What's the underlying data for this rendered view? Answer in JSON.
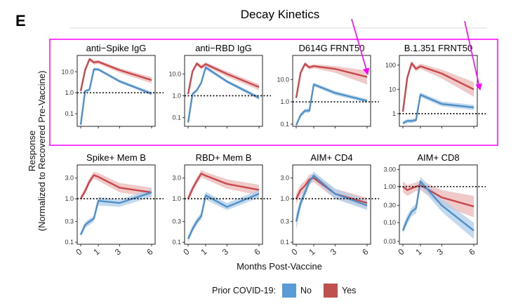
{
  "figure": {
    "panel_letter": "E",
    "title": "Decay Kinetics",
    "y_axis_label_line1": "Response",
    "y_axis_label_line2": "(Normalized to Recovered Pre-Vaccine)",
    "x_axis_label": "Months Post-Vaccine",
    "x_ticks": [
      "0",
      "1",
      "3",
      "6"
    ],
    "legend_title": "Prior COVID-19:",
    "legend_items": [
      {
        "label": "No",
        "color": "#5b9bd5"
      },
      {
        "label": "Yes",
        "color": "#c0504d"
      }
    ],
    "highlight_color": "#ff00ff",
    "colors": {
      "no": "#4f8fc7",
      "yes": "#c8474a",
      "no_band": "#b3d0ea",
      "yes_band": "#ecbcbc"
    }
  },
  "chart_data": [
    {
      "type": "line",
      "title": "anti−Spike IgG",
      "y_scale": "log",
      "ylim": [
        0.025,
        60
      ],
      "yticks": [
        0.1,
        1.0,
        10.0
      ],
      "ytick_labels": [
        "0.1",
        "1.0",
        "10.0"
      ],
      "reference_line": 1,
      "x": [
        0,
        0.25,
        0.5,
        0.75,
        1,
        3,
        6
      ],
      "series": [
        {
          "name": "No",
          "values": [
            0.03,
            1.2,
            1.4,
            13,
            13,
            3.5,
            0.9
          ],
          "lower": [
            0.025,
            1.0,
            1.2,
            11,
            11,
            3.0,
            0.75
          ],
          "upper": [
            0.04,
            1.4,
            1.6,
            16,
            15,
            4.2,
            1.1
          ]
        },
        {
          "name": "Yes",
          "values": [
            1.2,
            12,
            40,
            28,
            30,
            12,
            4
          ],
          "lower": [
            1.0,
            10,
            32,
            22,
            24,
            9,
            2.8
          ],
          "upper": [
            1.5,
            15,
            48,
            34,
            36,
            15,
            5.5
          ]
        }
      ]
    },
    {
      "type": "line",
      "title": "anti−RBD IgG",
      "y_scale": "log",
      "ylim": [
        0.04,
        70
      ],
      "yticks": [
        0.1,
        1.0,
        10.0
      ],
      "ytick_labels": [
        "0.1",
        "1.0",
        "10.0"
      ],
      "reference_line": 1,
      "x": [
        0,
        0.25,
        0.5,
        0.75,
        1,
        3,
        6
      ],
      "series": [
        {
          "name": "No",
          "values": [
            0.06,
            1.2,
            1.8,
            4,
            20,
            4.5,
            0.8
          ],
          "lower": [
            0.05,
            1.0,
            1.5,
            3.3,
            16,
            3.8,
            0.65
          ],
          "upper": [
            0.08,
            1.4,
            2.1,
            4.8,
            24,
            5.3,
            1.0
          ]
        },
        {
          "name": "Yes",
          "values": [
            1.2,
            13,
            30,
            20,
            28,
            10,
            2.5
          ],
          "lower": [
            1.0,
            11,
            24,
            16,
            22,
            7.5,
            1.8
          ],
          "upper": [
            1.5,
            16,
            37,
            25,
            34,
            13,
            3.4
          ]
        }
      ]
    },
    {
      "type": "line",
      "title": "D614G FRNT50",
      "y_scale": "log",
      "ylim": [
        0.08,
        120
      ],
      "yticks": [
        0.1,
        1.0,
        10.0
      ],
      "ytick_labels": [
        "0.1",
        "1.0",
        "10.0"
      ],
      "reference_line": 1,
      "x": [
        0,
        0.25,
        0.5,
        0.75,
        1,
        3,
        6
      ],
      "series": [
        {
          "name": "No",
          "values": [
            0.09,
            0.25,
            0.4,
            0.4,
            6,
            2.5,
            1.1
          ],
          "lower": [
            0.08,
            0.2,
            0.32,
            0.32,
            5,
            2.0,
            0.9
          ],
          "upper": [
            0.11,
            0.32,
            0.5,
            0.5,
            7.2,
            3.1,
            1.35
          ]
        },
        {
          "name": "Yes",
          "values": [
            1.5,
            20,
            50,
            35,
            40,
            30,
            13
          ],
          "lower": [
            1.2,
            16,
            40,
            28,
            32,
            20,
            6
          ],
          "upper": [
            1.9,
            25,
            62,
            43,
            48,
            40,
            25
          ]
        }
      ]
    },
    {
      "type": "line",
      "title": "B.1.351 FRNT50",
      "y_scale": "log",
      "ylim": [
        0.3,
        250
      ],
      "yticks": [
        1,
        10,
        100
      ],
      "ytick_labels": [
        "1",
        "10",
        "100"
      ],
      "reference_line": 1,
      "x": [
        0,
        0.25,
        0.5,
        0.75,
        1,
        3,
        6
      ],
      "series": [
        {
          "name": "No",
          "values": [
            0.4,
            0.5,
            0.5,
            0.55,
            6,
            2.5,
            1.8
          ],
          "lower": [
            0.35,
            0.42,
            0.42,
            0.45,
            4.8,
            2.0,
            1.4
          ],
          "upper": [
            0.48,
            0.6,
            0.6,
            0.65,
            7.5,
            3.2,
            2.3
          ]
        },
        {
          "name": "Yes",
          "values": [
            1.2,
            30,
            120,
            70,
            90,
            45,
            10
          ],
          "lower": [
            1.0,
            24,
            90,
            55,
            70,
            28,
            5
          ],
          "upper": [
            1.5,
            37,
            150,
            90,
            115,
            65,
            20
          ]
        }
      ]
    },
    {
      "type": "line",
      "title": "Spike+ Mem B",
      "y_scale": "log",
      "ylim": [
        0.09,
        6
      ],
      "yticks": [
        0.1,
        0.3,
        1.0,
        3.0
      ],
      "ytick_labels": [
        "0.1",
        "0.3",
        "1.0",
        "3.0"
      ],
      "reference_line": 1,
      "x": [
        0,
        0.25,
        0.5,
        0.75,
        1,
        3,
        6
      ],
      "series": [
        {
          "name": "No",
          "values": [
            0.15,
            0.25,
            0.3,
            0.35,
            0.9,
            0.8,
            1.4
          ],
          "lower": [
            0.13,
            0.21,
            0.25,
            0.3,
            0.7,
            0.65,
            1.1
          ],
          "upper": [
            0.17,
            0.29,
            0.35,
            0.4,
            1.1,
            0.95,
            1.7
          ]
        },
        {
          "name": "Yes",
          "values": [
            1.0,
            1.5,
            2.5,
            3.5,
            3.2,
            1.8,
            1.4
          ],
          "lower": [
            0.85,
            1.3,
            2.1,
            2.9,
            2.6,
            1.4,
            1.1
          ],
          "upper": [
            1.2,
            1.8,
            3.0,
            4.2,
            3.9,
            2.3,
            1.8
          ]
        }
      ]
    },
    {
      "type": "line",
      "title": "RBD+ Mem B",
      "y_scale": "log",
      "ylim": [
        0.09,
        6
      ],
      "yticks": [
        0.1,
        0.3,
        1.0,
        3.0
      ],
      "ytick_labels": [
        "0.1",
        "0.3",
        "1.0",
        "3.0"
      ],
      "reference_line": 1,
      "x": [
        0,
        0.25,
        0.5,
        0.75,
        1,
        3,
        6
      ],
      "series": [
        {
          "name": "No",
          "values": [
            0.12,
            0.2,
            0.3,
            0.4,
            1.2,
            0.65,
            1.3
          ],
          "lower": [
            0.1,
            0.17,
            0.25,
            0.33,
            0.95,
            0.55,
            1.05
          ],
          "upper": [
            0.14,
            0.24,
            0.36,
            0.48,
            1.45,
            0.8,
            1.6
          ]
        },
        {
          "name": "Yes",
          "values": [
            1.0,
            1.7,
            2.6,
            3.8,
            3.4,
            2.2,
            1.6
          ],
          "lower": [
            0.85,
            1.4,
            2.2,
            3.1,
            2.8,
            1.7,
            1.2
          ],
          "upper": [
            1.2,
            2.0,
            3.1,
            4.6,
            4.1,
            2.8,
            2.1
          ]
        }
      ]
    },
    {
      "type": "line",
      "title": "AIM+ CD4",
      "y_scale": "log",
      "ylim": [
        0.09,
        6
      ],
      "yticks": [
        0.1,
        0.3,
        1.0,
        3.0
      ],
      "ytick_labels": [
        "0.1",
        "0.3",
        "1.0",
        "3.0"
      ],
      "reference_line": 1,
      "x": [
        0,
        0.25,
        0.5,
        0.75,
        1,
        3,
        6
      ],
      "series": [
        {
          "name": "No",
          "values": [
            0.3,
            0.8,
            1.4,
            2.5,
            3.4,
            1.3,
            0.7
          ],
          "lower": [
            0.2,
            0.6,
            1.1,
            2.0,
            2.8,
            1.0,
            0.55
          ],
          "upper": [
            0.45,
            1.05,
            1.8,
            3.1,
            4.2,
            1.7,
            0.9
          ]
        },
        {
          "name": "Yes",
          "values": [
            1.0,
            1.6,
            2.0,
            2.8,
            3.0,
            1.3,
            0.8
          ],
          "lower": [
            0.75,
            1.2,
            1.5,
            2.2,
            2.4,
            1.0,
            0.6
          ],
          "upper": [
            1.3,
            2.1,
            2.6,
            3.6,
            3.8,
            1.7,
            1.05
          ]
        }
      ]
    },
    {
      "type": "line",
      "title": "AIM+ CD8",
      "y_scale": "log",
      "ylim": [
        0.025,
        4
      ],
      "yticks": [
        0.03,
        0.1,
        0.3,
        1.0,
        3.0
      ],
      "ytick_labels": [
        "0.03",
        "0.10",
        "0.30",
        "1.00",
        "3.00"
      ],
      "reference_line": 1,
      "x": [
        0,
        0.25,
        0.5,
        0.75,
        1,
        3,
        6
      ],
      "series": [
        {
          "name": "No",
          "values": [
            0.06,
            0.12,
            0.2,
            0.25,
            1.4,
            0.3,
            0.06
          ],
          "lower": [
            0.05,
            0.09,
            0.15,
            0.18,
            1.0,
            0.2,
            0.035
          ],
          "upper": [
            0.08,
            0.16,
            0.26,
            0.33,
            1.9,
            0.45,
            0.1
          ]
        },
        {
          "name": "Yes",
          "values": [
            1.0,
            0.8,
            0.9,
            1.0,
            1.1,
            0.5,
            0.28
          ],
          "lower": [
            0.7,
            0.55,
            0.65,
            0.75,
            0.8,
            0.3,
            0.14
          ],
          "upper": [
            1.4,
            1.1,
            1.2,
            1.3,
            1.5,
            0.8,
            0.55
          ]
        }
      ]
    }
  ]
}
